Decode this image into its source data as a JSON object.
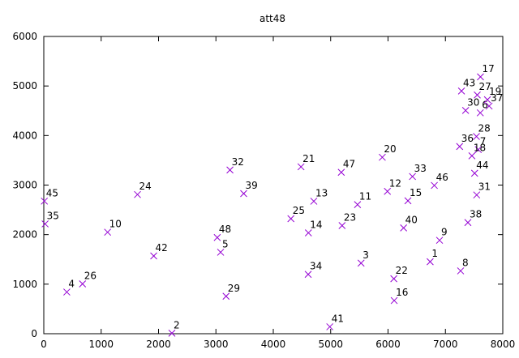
{
  "chart_data": {
    "type": "scatter",
    "title": "att48",
    "xlabel": "",
    "ylabel": "",
    "xlim": [
      0,
      8000
    ],
    "ylim": [
      0,
      6000
    ],
    "x_ticks": [
      0,
      1000,
      2000,
      3000,
      4000,
      5000,
      6000,
      7000,
      8000
    ],
    "y_ticks": [
      0,
      1000,
      2000,
      3000,
      4000,
      5000,
      6000
    ],
    "grid": false,
    "marker": "x",
    "marker_color": "#9400d3",
    "points": [
      {
        "label": "1",
        "x": 6734,
        "y": 1453
      },
      {
        "label": "2",
        "x": 2233,
        "y": 10
      },
      {
        "label": "3",
        "x": 5530,
        "y": 1424
      },
      {
        "label": "4",
        "x": 401,
        "y": 841
      },
      {
        "label": "5",
        "x": 3082,
        "y": 1644
      },
      {
        "label": "6",
        "x": 7608,
        "y": 4458
      },
      {
        "label": "7",
        "x": 7573,
        "y": 3716
      },
      {
        "label": "8",
        "x": 7265,
        "y": 1268
      },
      {
        "label": "9",
        "x": 6898,
        "y": 1885
      },
      {
        "label": "10",
        "x": 1112,
        "y": 2049
      },
      {
        "label": "11",
        "x": 5468,
        "y": 2606
      },
      {
        "label": "12",
        "x": 5989,
        "y": 2873
      },
      {
        "label": "13",
        "x": 4706,
        "y": 2674
      },
      {
        "label": "14",
        "x": 4612,
        "y": 2035
      },
      {
        "label": "15",
        "x": 6347,
        "y": 2683
      },
      {
        "label": "16",
        "x": 6107,
        "y": 669
      },
      {
        "label": "17",
        "x": 7611,
        "y": 5184
      },
      {
        "label": "18",
        "x": 7462,
        "y": 3590
      },
      {
        "label": "19",
        "x": 7732,
        "y": 4723
      },
      {
        "label": "20",
        "x": 5900,
        "y": 3561
      },
      {
        "label": "21",
        "x": 4483,
        "y": 3369
      },
      {
        "label": "22",
        "x": 6101,
        "y": 1110
      },
      {
        "label": "23",
        "x": 5199,
        "y": 2182
      },
      {
        "label": "24",
        "x": 1633,
        "y": 2809
      },
      {
        "label": "25",
        "x": 4307,
        "y": 2322
      },
      {
        "label": "26",
        "x": 675,
        "y": 1006
      },
      {
        "label": "27",
        "x": 7555,
        "y": 4819
      },
      {
        "label": "28",
        "x": 7541,
        "y": 3981
      },
      {
        "label": "29",
        "x": 3177,
        "y": 756
      },
      {
        "label": "30",
        "x": 7352,
        "y": 4506
      },
      {
        "label": "31",
        "x": 7545,
        "y": 2801
      },
      {
        "label": "32",
        "x": 3245,
        "y": 3305
      },
      {
        "label": "33",
        "x": 6426,
        "y": 3173
      },
      {
        "label": "34",
        "x": 4608,
        "y": 1198
      },
      {
        "label": "35",
        "x": 23,
        "y": 2216
      },
      {
        "label": "36",
        "x": 7248,
        "y": 3779
      },
      {
        "label": "37",
        "x": 7762,
        "y": 4595
      },
      {
        "label": "38",
        "x": 7392,
        "y": 2244
      },
      {
        "label": "39",
        "x": 3484,
        "y": 2829
      },
      {
        "label": "40",
        "x": 6271,
        "y": 2135
      },
      {
        "label": "41",
        "x": 4985,
        "y": 140
      },
      {
        "label": "42",
        "x": 1916,
        "y": 1569
      },
      {
        "label": "43",
        "x": 7280,
        "y": 4899
      },
      {
        "label": "44",
        "x": 7509,
        "y": 3239
      },
      {
        "label": "45",
        "x": 10,
        "y": 2676
      },
      {
        "label": "46",
        "x": 6807,
        "y": 2993
      },
      {
        "label": "47",
        "x": 5185,
        "y": 3258
      },
      {
        "label": "48",
        "x": 3023,
        "y": 1942
      }
    ]
  }
}
